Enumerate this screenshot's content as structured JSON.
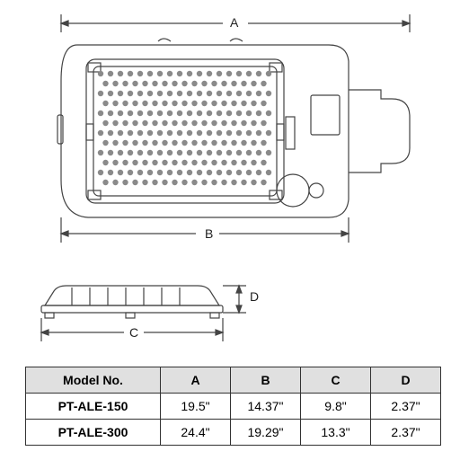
{
  "diagram": {
    "labels": {
      "A": "A",
      "B": "B",
      "C": "C",
      "D": "D"
    },
    "stroke": "#444444",
    "stroke_width": 1.2,
    "fill_body": "#ffffff",
    "dot_fill": "#999999"
  },
  "table": {
    "columns": [
      "Model No.",
      "A",
      "B",
      "C",
      "D"
    ],
    "rows": [
      [
        "PT-ALE-150",
        "19.5\"",
        "14.37\"",
        "9.8\"",
        "2.37\""
      ],
      [
        "PT-ALE-300",
        "24.4\"",
        "19.29\"",
        "13.3\"",
        "2.37\""
      ]
    ],
    "header_bg": "#e0e0e0",
    "border_color": "#323232",
    "font_size": 14
  }
}
